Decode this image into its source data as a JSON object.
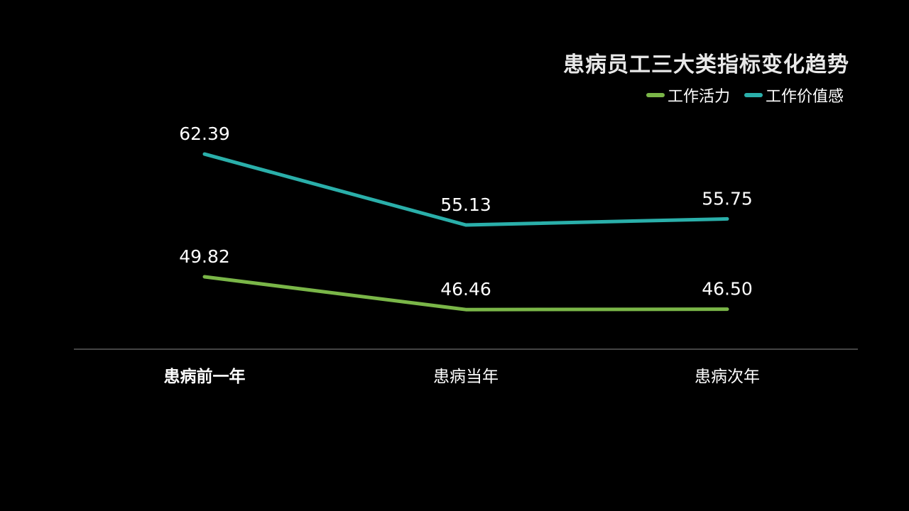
{
  "chart_data": {
    "type": "line",
    "title": "患病员工三大类指标变化趋势",
    "categories": [
      "患病前一年",
      "患病当年",
      "患病次年"
    ],
    "series": [
      {
        "name": "工作活力",
        "values": [
          49.82,
          46.46,
          46.5
        ],
        "labels": [
          "49.82",
          "46.46",
          "46.50"
        ],
        "color": "#7ab648"
      },
      {
        "name": "工作价值感",
        "values": [
          62.39,
          55.13,
          55.75
        ],
        "labels": [
          "62.39",
          "55.13",
          "55.75"
        ],
        "color": "#2aafaa"
      }
    ],
    "ylim": [
      42.4,
      70
    ],
    "grid": false,
    "legend": "top-right",
    "background": "#000000",
    "axis_color": "#888888",
    "text_color": "#ffffff"
  }
}
